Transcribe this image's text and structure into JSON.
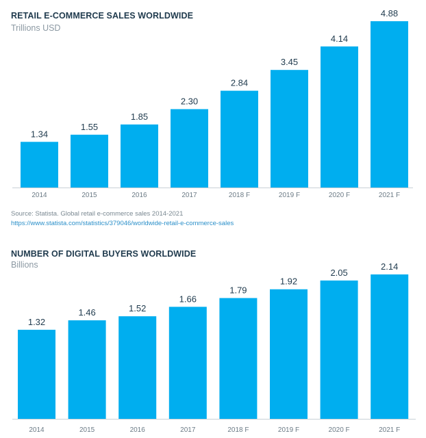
{
  "chart_data": [
    {
      "type": "bar",
      "title": "RETAIL E-COMMERCE SALES WORLDWIDE",
      "subtitle": "Trillions USD",
      "categories": [
        "2014",
        "2015",
        "2016",
        "2017",
        "2018 F",
        "2019 F",
        "2020 F",
        "2021 F"
      ],
      "values": [
        1.34,
        1.55,
        1.85,
        2.3,
        2.84,
        3.45,
        4.14,
        4.88
      ],
      "value_labels": [
        "1.34",
        "1.55",
        "1.85",
        "2.30",
        "2.84",
        "3.45",
        "4.14",
        "4.88"
      ],
      "ylim": [
        0,
        4.88
      ],
      "grid": false,
      "bar_color": "#00aeef",
      "source": "Source: Statista. Global retail e-commerce sales 2014-2021",
      "source_url": "https://www.statista.com/statistics/379046/worldwide-retail-e-commerce-sales"
    },
    {
      "type": "bar",
      "title": "NUMBER OF DIGITAL BUYERS WORLDWIDE",
      "subtitle": "Billions",
      "categories": [
        "2014",
        "2015",
        "2016",
        "2017",
        "2018 F",
        "2019 F",
        "2020 F",
        "2021 F"
      ],
      "values": [
        1.32,
        1.46,
        1.52,
        1.66,
        1.79,
        1.92,
        2.05,
        2.14
      ],
      "value_labels": [
        "1.32",
        "1.46",
        "1.52",
        "1.66",
        "1.79",
        "1.92",
        "2.05",
        "2.14"
      ],
      "ylim": [
        0,
        2.14
      ],
      "grid": false,
      "bar_color": "#00aeef"
    }
  ]
}
